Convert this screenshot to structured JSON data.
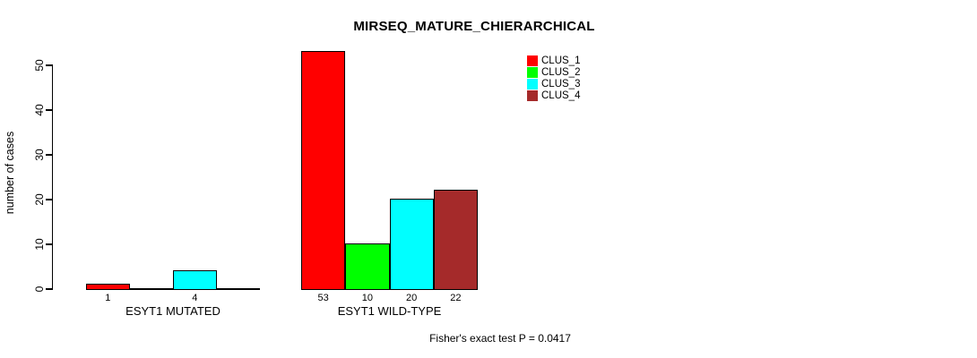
{
  "chart_data": {
    "type": "bar",
    "title": "MIRSEQ_MATURE_CHIERARCHICAL",
    "xlabel": "",
    "ylabel": "number of cases",
    "ylim": [
      0,
      53
    ],
    "yticks": [
      0,
      10,
      20,
      30,
      40,
      50
    ],
    "grid": false,
    "legend_position": "top-right",
    "categories": [
      "ESYT1 MUTATED",
      "ESYT1 WILD-TYPE"
    ],
    "series": [
      {
        "name": "CLUS_1",
        "color": "#FF0000",
        "values": [
          1,
          53
        ]
      },
      {
        "name": "CLUS_2",
        "color": "#00FF00",
        "values": [
          0,
          10
        ]
      },
      {
        "name": "CLUS_3",
        "color": "#00FFFF",
        "values": [
          4,
          20
        ]
      },
      {
        "name": "CLUS_4",
        "color": "#A52A2A",
        "values": [
          0,
          22
        ]
      }
    ],
    "bar_value_labels": {
      "ESYT1 MUTATED": [
        "1",
        "4"
      ],
      "ESYT1 WILD-TYPE": [
        "53",
        "10",
        "20",
        "22"
      ]
    },
    "annotation": "Fisher's exact test P = 0.0417"
  }
}
